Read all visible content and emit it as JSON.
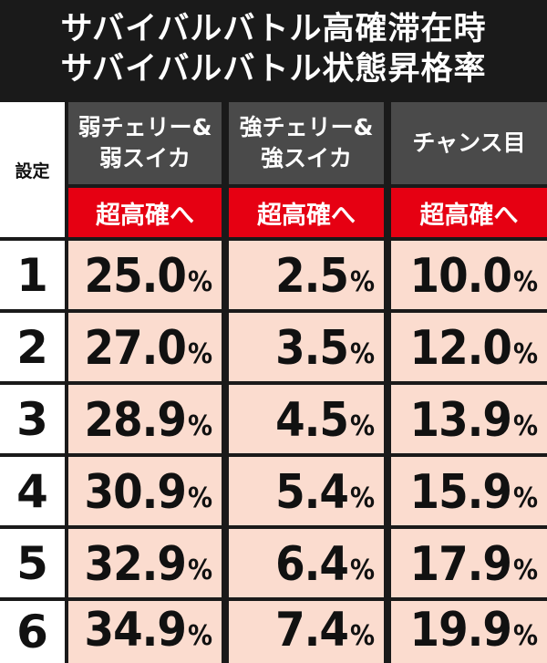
{
  "title": {
    "line1": "サバイバルバトル高確滞在時",
    "line2": "サバイバルバトル状態昇格率"
  },
  "table": {
    "setting_header": "設定",
    "columns": [
      {
        "line1": "弱チェリー&",
        "line2": "弱スイカ",
        "sub": "超高確へ"
      },
      {
        "line1": "強チェリー&",
        "line2": "強スイカ",
        "sub": "超高確へ"
      },
      {
        "line1": "チャンス目",
        "line2": "",
        "sub": "超高確へ"
      }
    ],
    "percent_sign": "%",
    "rows": [
      {
        "setting": "1",
        "values": [
          "25.0",
          "2.5",
          "10.0"
        ]
      },
      {
        "setting": "2",
        "values": [
          "27.0",
          "3.5",
          "12.0"
        ]
      },
      {
        "setting": "3",
        "values": [
          "28.9",
          "4.5",
          "13.9"
        ]
      },
      {
        "setting": "4",
        "values": [
          "30.9",
          "5.4",
          "15.9"
        ]
      },
      {
        "setting": "5",
        "values": [
          "32.9",
          "6.4",
          "17.9"
        ]
      },
      {
        "setting": "6",
        "values": [
          "34.9",
          "7.4",
          "19.9"
        ]
      }
    ]
  },
  "colors": {
    "background": "#1a1a1a",
    "header_gray": "#4a4a4a",
    "header_red": "#e60012",
    "cell_pink": "#fbdccf"
  }
}
